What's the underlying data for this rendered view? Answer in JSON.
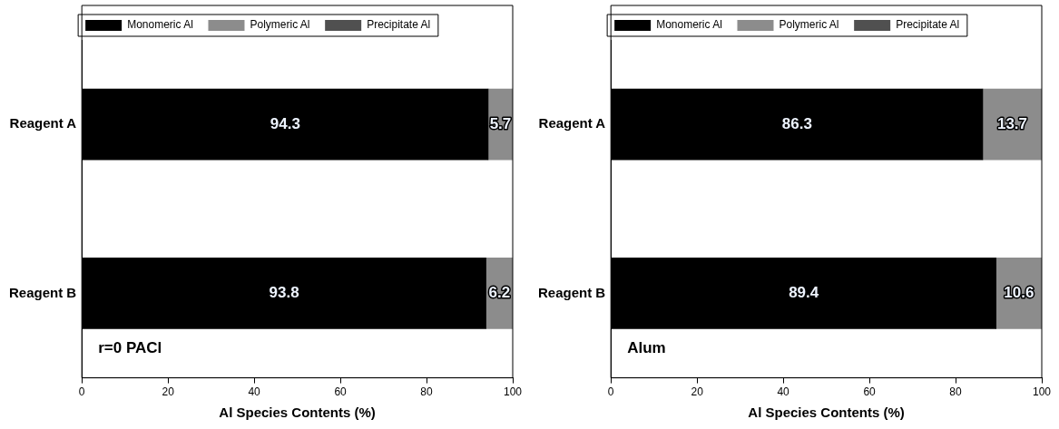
{
  "chart_data": [
    {
      "type": "bar",
      "orientation": "horizontal",
      "stacked": true,
      "categories": [
        "Reagent A",
        "Reagent B"
      ],
      "xlabel": "Al Species Contents (%)",
      "xlim": [
        0,
        100
      ],
      "xticks": [
        0,
        20,
        40,
        60,
        80,
        100
      ],
      "grid": false,
      "legend": "top",
      "annotations": [
        "r=0 PACl"
      ],
      "series": [
        {
          "name": "Monomeric Al",
          "color": "#000000",
          "values": [
            94.3,
            93.8
          ],
          "value_labels": [
            "94.3",
            "93.8"
          ]
        },
        {
          "name": "Polymeric Al",
          "color": "#8c8c8c",
          "values": [
            5.7,
            6.2
          ],
          "value_labels": [
            "5.7",
            "6.2"
          ]
        },
        {
          "name": "Precipitate Al",
          "color": "#505050",
          "values": [
            0,
            0
          ],
          "value_labels": [
            null,
            null
          ]
        }
      ]
    },
    {
      "type": "bar",
      "orientation": "horizontal",
      "stacked": true,
      "categories": [
        "Reagent A",
        "Reagent B"
      ],
      "xlabel": "Al Species Contents (%)",
      "xlim": [
        0,
        100
      ],
      "xticks": [
        0,
        20,
        40,
        60,
        80,
        100
      ],
      "grid": false,
      "legend": "top",
      "annotations": [
        "Alum"
      ],
      "series": [
        {
          "name": "Monomeric Al",
          "color": "#000000",
          "values": [
            86.3,
            89.4
          ],
          "value_labels": [
            "86.3",
            "89.4"
          ]
        },
        {
          "name": "Polymeric Al",
          "color": "#8c8c8c",
          "values": [
            13.7,
            10.6
          ],
          "value_labels": [
            "13.7",
            "10.6"
          ]
        },
        {
          "name": "Precipitate Al",
          "color": "#505050",
          "values": [
            0,
            0
          ],
          "value_labels": [
            null,
            null
          ]
        }
      ]
    }
  ]
}
